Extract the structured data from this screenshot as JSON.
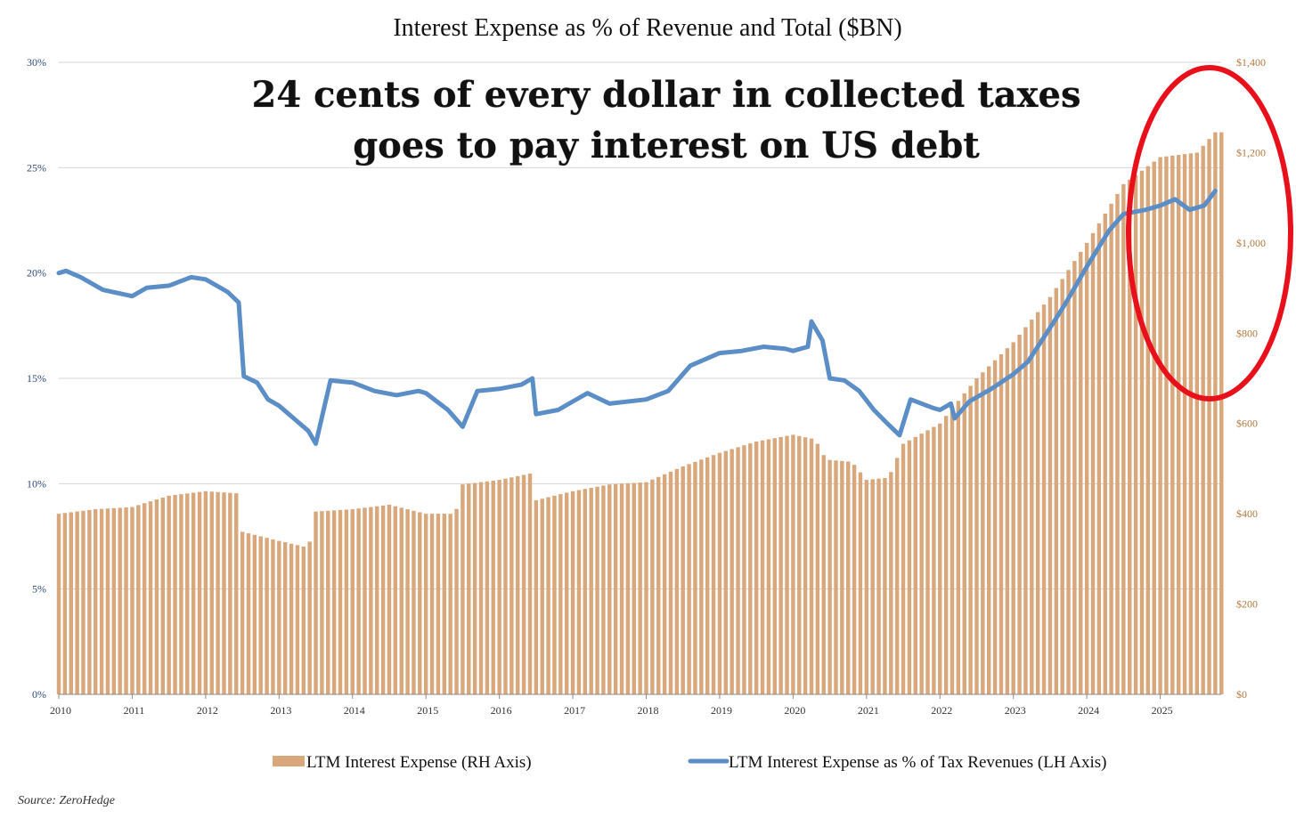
{
  "chart_data": {
    "type": "bar+line",
    "title": "Interest Expense as % of  Revenue and Total ($BN)",
    "headline": [
      "24 cents of every dollar in collected taxes",
      "goes to pay interest on US debt"
    ],
    "source": "Source: ZeroHedge",
    "x_ticks": [
      "2010",
      "2011",
      "2012",
      "2013",
      "2014",
      "2015",
      "2016",
      "2017",
      "2018",
      "2019",
      "2020",
      "2021",
      "2022",
      "2023",
      "2024",
      "2025"
    ],
    "x_range": [
      2010.0,
      2025.83
    ],
    "left_axis": {
      "ticks": [
        "0%",
        "5%",
        "10%",
        "15%",
        "20%",
        "25%",
        "30%"
      ],
      "ylim": [
        0,
        30
      ]
    },
    "right_axis": {
      "ticks": [
        "$0",
        "$200",
        "$400",
        "$600",
        "$800",
        "$1,000",
        "$1,200",
        "$1,400"
      ],
      "ylim": [
        0,
        1400
      ]
    },
    "legend": {
      "bars": "LTM Interest Expense (RH Axis)",
      "line": "LTM Interest Expense as % of Tax Revenues (LH Axis)"
    },
    "colors": {
      "bars": "#d9a77c",
      "line": "#5b8ec7",
      "highlight": "#e8101a",
      "grid": "#d4d4d4"
    },
    "highlight": "red ellipse around 2025",
    "series": [
      {
        "name": "LTM Interest Expense (RH Axis)",
        "axis": "right",
        "kind": "bar",
        "x": [
          2010.0,
          2010.5,
          2011.0,
          2011.5,
          2012.0,
          2012.45,
          2012.5,
          2013.0,
          2013.4,
          2013.5,
          2014.0,
          2014.5,
          2015.0,
          2015.4,
          2015.5,
          2016.0,
          2016.45,
          2016.5,
          2017.0,
          2017.5,
          2018.0,
          2018.5,
          2019.0,
          2019.5,
          2020.0,
          2020.3,
          2020.45,
          2020.8,
          2021.0,
          2021.3,
          2021.5,
          2022.0,
          2022.5,
          2023.0,
          2023.5,
          2024.0,
          2024.5,
          2025.0,
          2025.5,
          2025.75
        ],
        "values": [
          400,
          410,
          415,
          440,
          450,
          445,
          360,
          340,
          325,
          405,
          410,
          420,
          400,
          400,
          465,
          475,
          490,
          430,
          450,
          465,
          470,
          505,
          535,
          560,
          575,
          565,
          520,
          515,
          475,
          480,
          555,
          600,
          700,
          780,
          880,
          1000,
          1130,
          1190,
          1200,
          1245
        ]
      },
      {
        "name": "LTM Interest Expense as % of Tax Revenues (LH Axis)",
        "axis": "left",
        "kind": "line",
        "x": [
          2010.0,
          2010.1,
          2010.3,
          2010.6,
          2011.0,
          2011.2,
          2011.5,
          2011.8,
          2012.0,
          2012.3,
          2012.45,
          2012.52,
          2012.7,
          2012.85,
          2013.0,
          2013.2,
          2013.4,
          2013.5,
          2013.7,
          2014.0,
          2014.3,
          2014.6,
          2014.9,
          2015.0,
          2015.3,
          2015.45,
          2015.5,
          2015.7,
          2016.0,
          2016.3,
          2016.45,
          2016.5,
          2016.8,
          2017.0,
          2017.2,
          2017.5,
          2018.0,
          2018.3,
          2018.6,
          2018.8,
          2019.0,
          2019.3,
          2019.6,
          2019.9,
          2020.0,
          2020.2,
          2020.25,
          2020.4,
          2020.5,
          2020.7,
          2020.9,
          2021.1,
          2021.3,
          2021.45,
          2021.6,
          2021.9,
          2022.0,
          2022.15,
          2022.2,
          2022.4,
          2022.7,
          2023.0,
          2023.2,
          2023.5,
          2023.7,
          2024.0,
          2024.3,
          2024.5,
          2024.8,
          2025.0,
          2025.2,
          2025.4,
          2025.6,
          2025.75
        ],
        "values": [
          20.0,
          20.1,
          19.8,
          19.2,
          18.9,
          19.3,
          19.4,
          19.8,
          19.7,
          19.1,
          18.6,
          15.1,
          14.8,
          14.0,
          13.7,
          13.1,
          12.5,
          11.9,
          14.9,
          14.8,
          14.4,
          14.2,
          14.4,
          14.3,
          13.5,
          12.9,
          12.7,
          14.4,
          14.5,
          14.7,
          15.0,
          13.3,
          13.5,
          13.9,
          14.3,
          13.8,
          14.0,
          14.4,
          15.6,
          15.9,
          16.2,
          16.3,
          16.5,
          16.4,
          16.3,
          16.5,
          17.7,
          16.8,
          15.0,
          14.9,
          14.4,
          13.5,
          12.8,
          12.3,
          14.0,
          13.6,
          13.5,
          13.8,
          13.1,
          13.9,
          14.5,
          15.2,
          15.8,
          17.4,
          18.5,
          20.3,
          22.0,
          22.8,
          23.0,
          23.2,
          23.5,
          23.0,
          23.2,
          23.9
        ]
      }
    ]
  }
}
